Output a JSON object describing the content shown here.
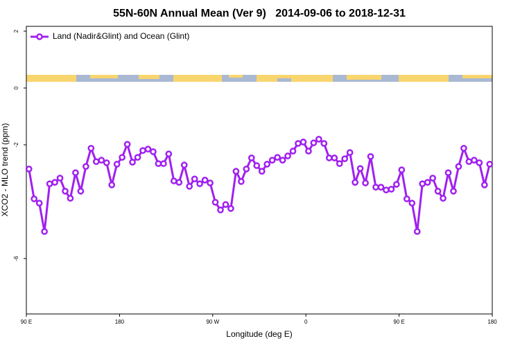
{
  "chart_data": {
    "type": "line",
    "title": "55N-60N Annual Mean (Ver 9)   2014-09-06 to 2018-12-31",
    "x_label": "Longitude (deg E)",
    "y_label": "XCO2 - MLO trend (ppm)",
    "xlim": [
      90,
      540
    ],
    "xticks": [
      {
        "value": 90,
        "label": "90 E"
      },
      180,
      {
        "value": 270,
        "label": "90 W"
      },
      {
        "value": 360,
        "label": "0"
      },
      {
        "value": 450,
        "label": "90 E"
      },
      {
        "value": 540,
        "label": "180"
      }
    ],
    "ylim": [
      -7.95,
      2.17
    ],
    "yticks": [
      2,
      0,
      -2,
      -6
    ],
    "legend": "upper left",
    "x": [
      92.5,
      97.5,
      102.5,
      107.5,
      112.5,
      117.5,
      122.5,
      127.5,
      132.5,
      137.5,
      142.5,
      147.5,
      152.5,
      157.5,
      162.5,
      167.5,
      172.5,
      177.5,
      182.5,
      187.5,
      192.5,
      197.5,
      202.5,
      207.5,
      212.5,
      217.5,
      222.5,
      227.5,
      232.5,
      237.5,
      242.5,
      247.5,
      252.5,
      257.5,
      262.5,
      267.5,
      272.5,
      277.5,
      282.5,
      287.5,
      292.5,
      297.5,
      302.5,
      307.5,
      312.5,
      317.5,
      322.5,
      327.5,
      332.5,
      337.5,
      342.5,
      347.5,
      352.5,
      357.5,
      362.5,
      367.5,
      372.5,
      377.5,
      382.5,
      387.5,
      392.5,
      397.5,
      402.5,
      407.5,
      412.5,
      417.5,
      422.5,
      427.5,
      432.5,
      437.5,
      442.5,
      447.5,
      452.5,
      457.5,
      462.5,
      467.5,
      472.5,
      477.5,
      482.5,
      487.5,
      492.5,
      497.5,
      502.5,
      507.5,
      512.5,
      517.5,
      522.5,
      527.5,
      532.5,
      537.5
    ],
    "series": [
      {
        "name": "Land (Nadir&Glint) and Ocean (Glint)",
        "color": "#a020f0",
        "values": [
          -2.85,
          -3.9,
          -4.05,
          -5.05,
          -3.37,
          -3.32,
          -3.17,
          -3.63,
          -3.88,
          -2.98,
          -3.63,
          -2.76,
          -2.12,
          -2.59,
          -2.54,
          -2.63,
          -3.41,
          -2.68,
          -2.44,
          -1.98,
          -2.61,
          -2.44,
          -2.2,
          -2.15,
          -2.24,
          -2.66,
          -2.66,
          -2.32,
          -3.27,
          -3.32,
          -2.71,
          -3.46,
          -3.2,
          -3.37,
          -3.24,
          -3.34,
          -4.02,
          -4.29,
          -4.1,
          -4.24,
          -2.93,
          -3.29,
          -2.85,
          -2.46,
          -2.73,
          -2.93,
          -2.68,
          -2.54,
          -2.44,
          -2.54,
          -2.39,
          -2.22,
          -1.95,
          -1.9,
          -2.22,
          -1.93,
          -1.8,
          -1.95,
          -2.46,
          -2.46,
          -2.66,
          -2.49,
          -2.27,
          -3.32,
          -2.83,
          -3.34,
          -2.41,
          -3.49,
          -3.49,
          -3.59,
          -3.56,
          -3.39,
          -2.88,
          -3.9,
          -4.05,
          -5.05,
          -3.37,
          -3.32,
          -3.17,
          -3.63,
          -3.88,
          -2.98,
          -3.63,
          -2.76,
          -2.12,
          -2.59,
          -2.54,
          -2.63,
          -3.41,
          -2.68
        ]
      }
    ]
  }
}
